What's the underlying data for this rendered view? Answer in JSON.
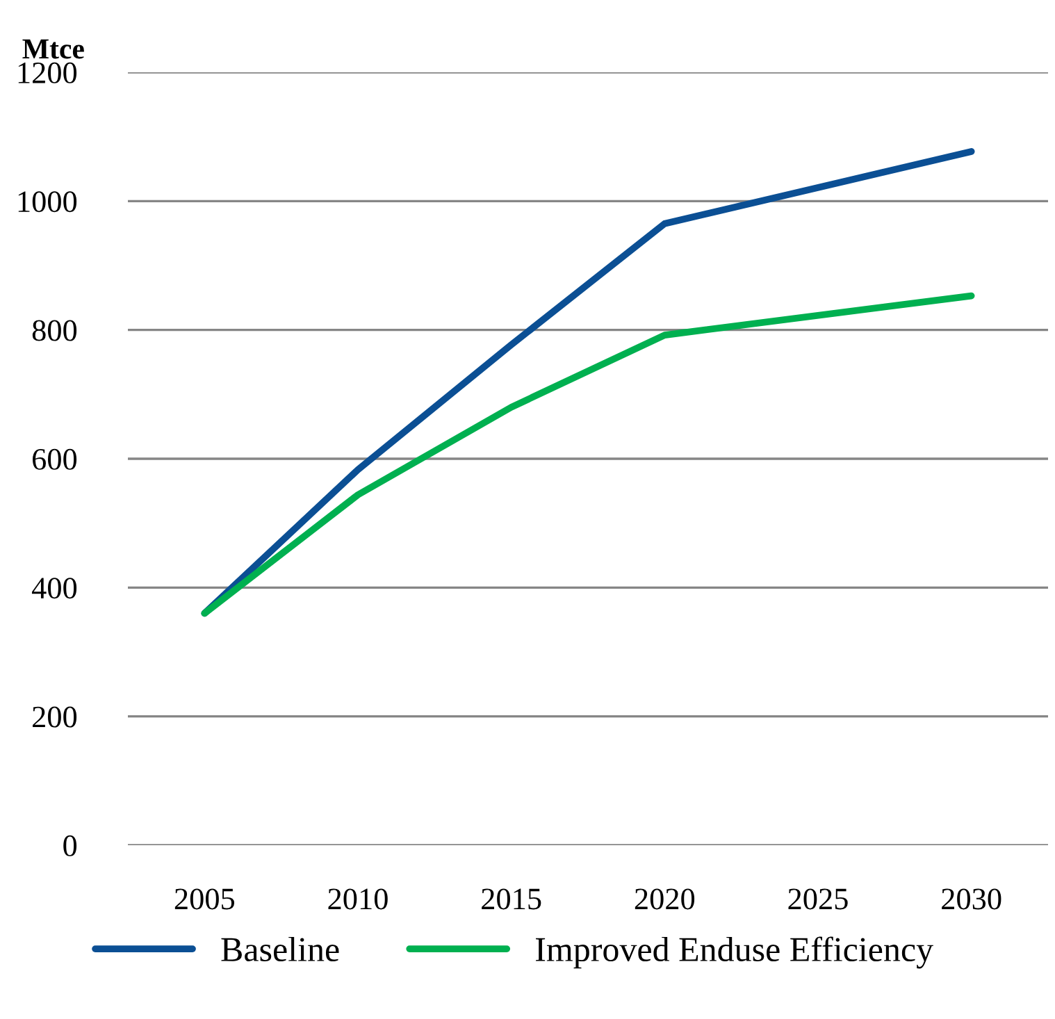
{
  "chart_data": {
    "type": "line",
    "ylabel": "Mtce",
    "categories": [
      "2005",
      "2010",
      "2015",
      "2020",
      "2025",
      "2030"
    ],
    "series": [
      {
        "name": "Baseline",
        "color": "#0b4f94",
        "values": [
          360,
          583,
          777,
          965,
          null,
          1077
        ]
      },
      {
        "name": "Improved Enduse Efficiency",
        "color": "#00b050",
        "values": [
          360,
          544,
          680,
          792,
          null,
          853
        ]
      }
    ],
    "ylim": [
      0,
      1200
    ],
    "yticks": [
      0,
      200,
      400,
      600,
      800,
      1000,
      1200
    ],
    "grid": "y",
    "legend": "bottom"
  }
}
